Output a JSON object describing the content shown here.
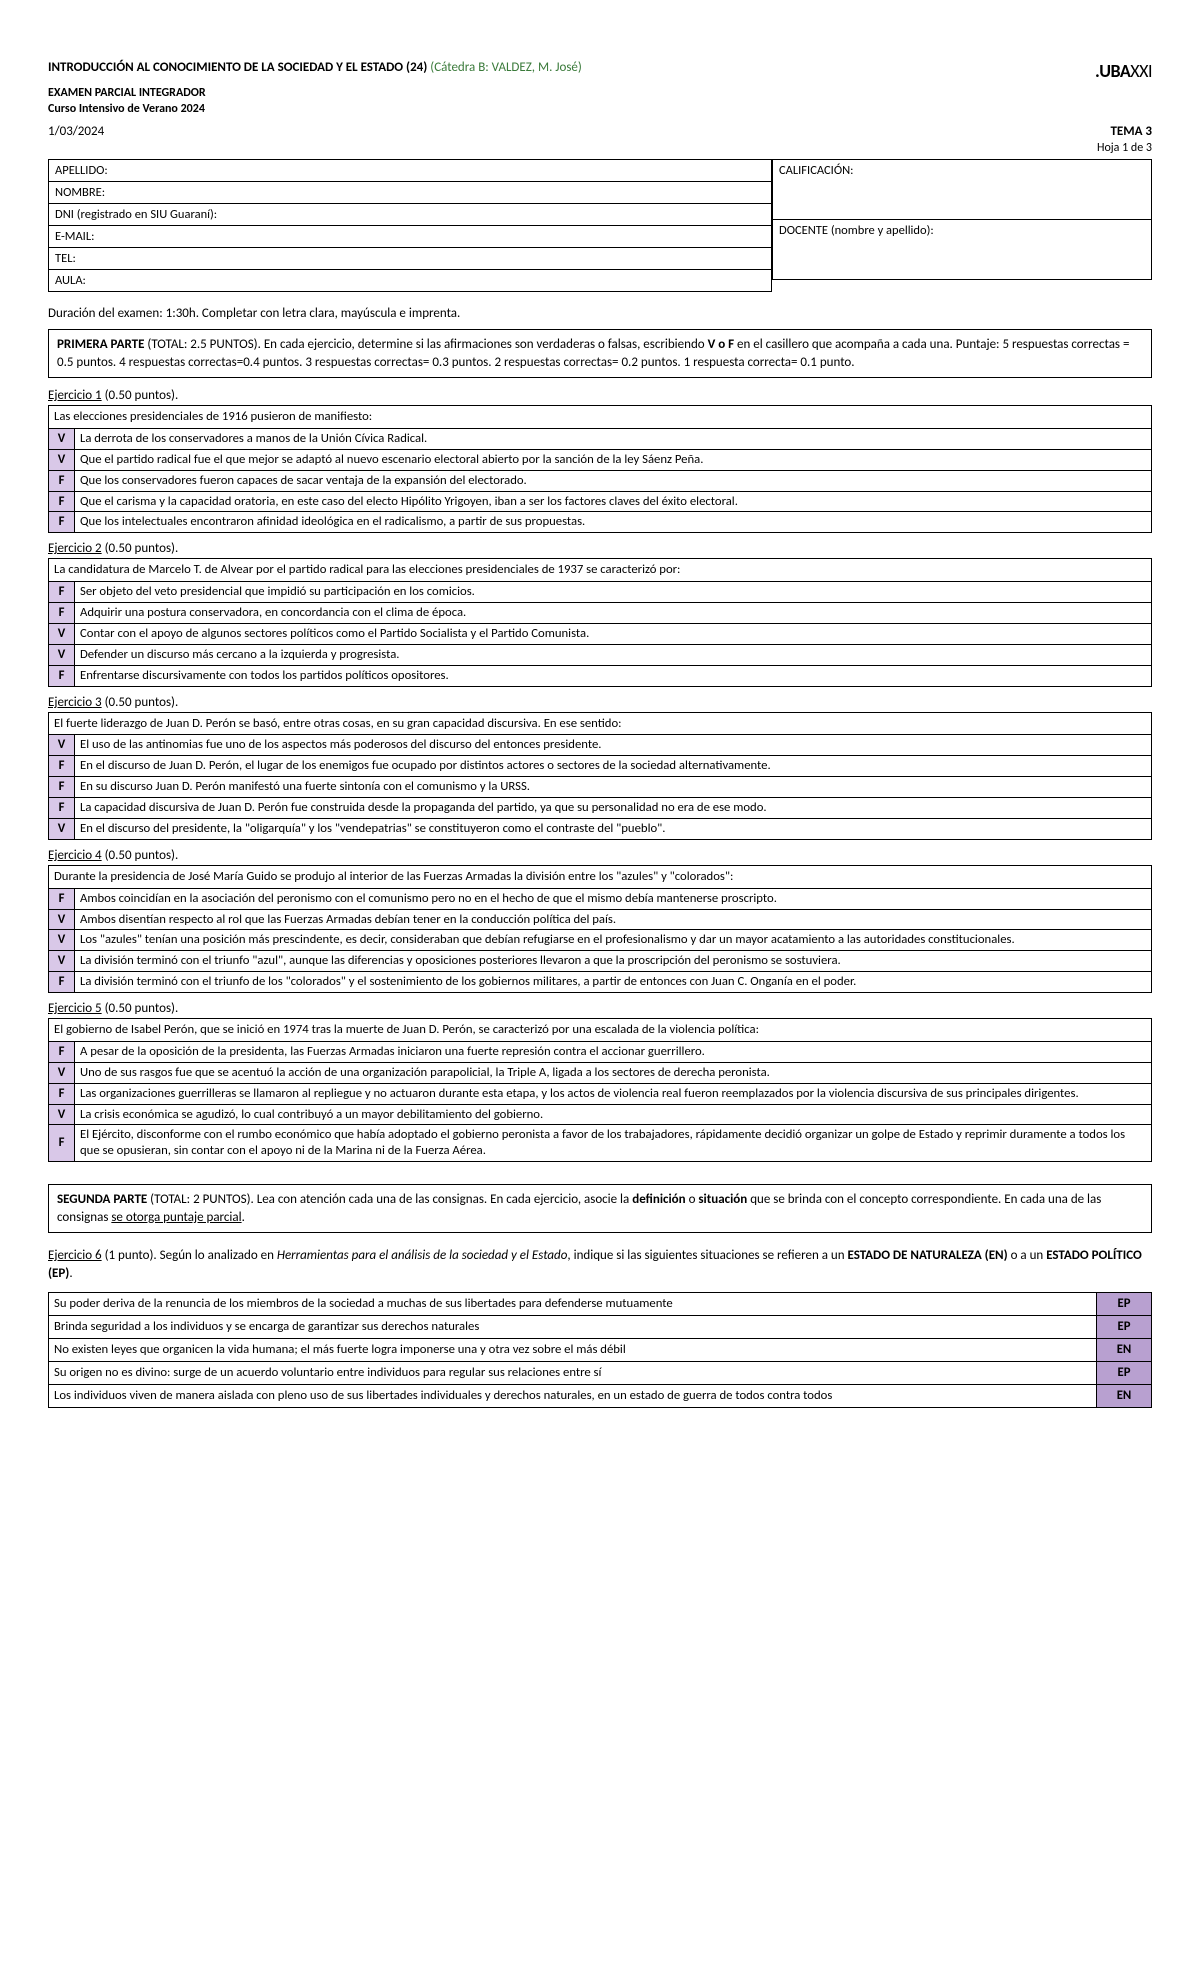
{
  "header": {
    "course_title": "INTRODUCCIÓN AL CONOCIMIENTO DE LA SOCIEDAD Y EL ESTADO (24)",
    "catedra": "(Cátedra B: VALDEZ, M. José)",
    "logo_bold": ".UBA",
    "logo_thin": "XXI",
    "line2": "EXAMEN PARCIAL INTEGRADOR",
    "line3": "Curso Intensivo de Verano 2024",
    "date": "1/03/2024",
    "tema": "TEMA 3",
    "hoja": "Hoja 1 de 3"
  },
  "info": {
    "apellido": "APELLIDO:",
    "nombre": "NOMBRE:",
    "dni": "DNI (registrado en SIU Guaraní):",
    "email": "E-MAIL:",
    "tel": "TEL:",
    "aula": "AULA:",
    "calif": "CALIFICACIÓN:",
    "docente": "DOCENTE (nombre y apellido):"
  },
  "duracion": "Duración del examen: 1:30h. Completar con letra clara, mayúscula e imprenta.",
  "parte1": {
    "label": "PRIMERA PARTE",
    "text": " (TOTAL: 2.5 PUNTOS). En cada ejercicio, determine si las afirmaciones son verdaderas o falsas, escribiendo ",
    "vf": "V o F",
    "text2": " en el casillero que acompaña a cada una. Puntaje: 5 respuestas correctas = 0.5 puntos. 4 respuestas correctas=0.4 puntos. 3 respuestas correctas= 0.3 puntos. 2 respuestas correctas= 0.2 puntos. 1 respuesta correcta= 0.1 punto."
  },
  "ej1": {
    "title": "Ejercicio 1",
    "pts": " (0.50 puntos).",
    "prompt": "Las elecciones presidenciales de 1916 pusieron de manifiesto:",
    "rows": [
      {
        "a": "V",
        "t": "La derrota de los conservadores a manos de la Unión Cívica Radical."
      },
      {
        "a": "V",
        "t": "Que el partido radical fue el que mejor se adaptó al nuevo escenario electoral abierto por la sanción de la ley Sáenz Peña."
      },
      {
        "a": "F",
        "t": "Que los conservadores fueron capaces de sacar ventaja de la expansión del electorado."
      },
      {
        "a": "F",
        "t": "Que el carisma y la capacidad oratoria, en este caso del electo Hipólito  Yrigoyen, iban a ser los factores claves del éxito electoral."
      },
      {
        "a": "F",
        "t": "Que los intelectuales encontraron afinidad ideológica en el radicalismo, a partir de sus propuestas."
      }
    ]
  },
  "ej2": {
    "title": "Ejercicio 2",
    "pts": " (0.50 puntos).",
    "prompt": "La candidatura de Marcelo T. de Alvear por el partido radical para las elecciones presidenciales de 1937 se caracterizó por:",
    "rows": [
      {
        "a": "F",
        "t": "Ser objeto del veto presidencial que impidió su participación en los comicios."
      },
      {
        "a": "F",
        "t": "Adquirir una postura conservadora, en concordancia con el clima de época."
      },
      {
        "a": "V",
        "t": "Contar con el apoyo de algunos sectores políticos como el Partido Socialista y el Partido Comunista."
      },
      {
        "a": "V",
        "t": "Defender un discurso más cercano a la izquierda y progresista."
      },
      {
        "a": "F",
        "t": "Enfrentarse discursivamente con todos los partidos políticos opositores."
      }
    ]
  },
  "ej3": {
    "title": "Ejercicio 3",
    "pts": " (0.50 puntos).",
    "prompt": "El fuerte liderazgo de Juan D. Perón se basó, entre otras cosas, en su gran capacidad discursiva. En ese sentido:",
    "rows": [
      {
        "a": "V",
        "t": "El uso de las antinomias fue uno de los aspectos más poderosos del discurso del entonces presidente."
      },
      {
        "a": "F",
        "t": "En el discurso de Juan D. Perón, el lugar de los enemigos fue ocupado por distintos actores o sectores de la sociedad alternativamente."
      },
      {
        "a": "F",
        "t": "En su discurso Juan D. Perón manifestó una fuerte sintonía con el comunismo y la URSS."
      },
      {
        "a": "F",
        "t": "La capacidad discursiva de Juan D. Perón fue construida desde la propaganda del partido, ya que su personalidad no era de ese modo."
      },
      {
        "a": "V",
        "t": "En el discurso del presidente, la \"oligarquía\" y los \"vendepatrias\" se constituyeron como el contraste del \"pueblo\"."
      }
    ]
  },
  "ej4": {
    "title": "Ejercicio 4",
    "pts": " (0.50 puntos).",
    "prompt": "Durante la presidencia de José María Guido se produjo al interior de las Fuerzas Armadas la división entre los \"azules\" y \"colorados\":",
    "rows": [
      {
        "a": "F",
        "t": "Ambos coincidían en la asociación del peronismo con el comunismo pero no en el hecho de que el mismo debía mantenerse proscripto."
      },
      {
        "a": "V",
        "t": "Ambos disentían respecto al rol que las Fuerzas Armadas debían tener en la conducción política del país."
      },
      {
        "a": "V",
        "t": "Los \"azules\" tenían una posición más prescindente, es decir, consideraban que debían refugiarse en el profesionalismo y dar un mayor acatamiento a las autoridades constitucionales."
      },
      {
        "a": "V",
        "t": "La división terminó con el triunfo \"azul\", aunque las diferencias y oposiciones posteriores llevaron a que la proscripción del peronismo se sostuviera."
      },
      {
        "a": "F",
        "t": "La división terminó con el triunfo de los \"colorados\" y el sostenimiento de los gobiernos militares, a partir de entonces con Juan C. Onganía en el poder."
      }
    ]
  },
  "ej5": {
    "title": "Ejercicio 5",
    "pts": " (0.50 puntos).",
    "prompt": "El gobierno de Isabel Perón, que se inició en 1974 tras la muerte de Juan D. Perón, se caracterizó por una escalada de la violencia política:",
    "rows": [
      {
        "a": "F",
        "t": "A pesar de la oposición de la presidenta, las Fuerzas Armadas iniciaron una fuerte represión contra el accionar guerrillero."
      },
      {
        "a": "V",
        "t": "Uno de sus rasgos fue que se acentuó la acción de una organización parapolicial, la Triple A, ligada a los sectores de derecha peronista."
      },
      {
        "a": "F",
        "t": "Las organizaciones guerrilleras se llamaron al repliegue y no actuaron durante esta etapa, y los actos de violencia real fueron reemplazados por la violencia discursiva de sus principales dirigentes."
      },
      {
        "a": "V",
        "t": "La crisis económica se agudizó, lo cual contribuyó a un mayor debilitamiento del gobierno."
      },
      {
        "a": "F",
        "t": "El Ejército, disconforme con el rumbo económico que había adoptado el gobierno peronista a favor de los trabajadores, rápidamente decidió organizar un golpe de Estado y reprimir duramente a todos los que se opusieran, sin contar con el apoyo ni de la Marina ni de la Fuerza Aérea."
      }
    ]
  },
  "parte2": {
    "label": "SEGUNDA PARTE",
    "text": " (TOTAL: 2 PUNTOS). Lea con atención cada una de las consignas. En cada ejercicio, asocie la ",
    "b1": "definición",
    "mid": " o ",
    "b2": "situación",
    "text2": " que se brinda con el concepto correspondiente. En cada una de las consignas ",
    "u": "se otorga puntaje parcial",
    "end": "."
  },
  "ej6": {
    "title": "Ejercicio 6",
    "pts": " (1 punto). Según lo analizado en ",
    "italic": "Herramientas para el análisis de la sociedad y el Estado",
    "text2": ", indique si las siguientes situaciones se refieren a un ",
    "b1": "ESTADO DE NATURALEZA (EN)",
    "mid": " o a un ",
    "b2": "ESTADO POLÍTICO (EP)",
    "end": ".",
    "rows": [
      {
        "t": "Su poder deriva de la renuncia de los miembros de la sociedad a muchas de sus libertades para defenderse mutuamente",
        "a": "EP"
      },
      {
        "t": "Brinda seguridad a los individuos y se encarga de garantizar sus derechos naturales",
        "a": "EP"
      },
      {
        "t": "No existen leyes que organicen la vida humana; el más fuerte logra imponerse una y otra vez sobre el más débil",
        "a": "EN"
      },
      {
        "t": "Su origen no es divino: surge de un acuerdo voluntario entre individuos para regular sus relaciones entre sí",
        "a": "EP"
      },
      {
        "t": "Los individuos viven de manera aislada con pleno uso de sus libertades individuales y derechos naturales, en un estado de guerra de todos contra todos",
        "a": "EN"
      }
    ]
  },
  "colors": {
    "answer_bg": "#d9c8e8",
    "answer6_bg": "#b8a0d0",
    "catedra_color": "#3a7a3a"
  }
}
